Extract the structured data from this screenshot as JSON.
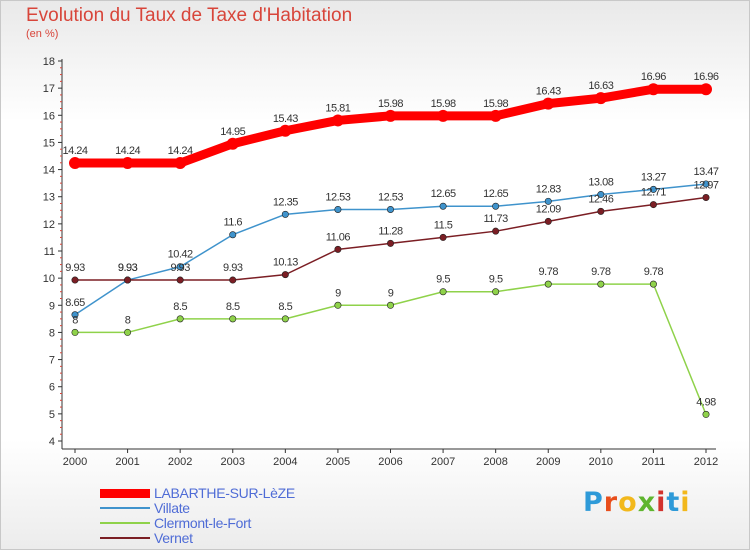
{
  "title": "Evolution du Taux de Taxe d'Habitation",
  "subtitle": "(en %)",
  "logo": {
    "text": "Proxiti",
    "letter_colors": [
      "#2e9ad8",
      "#e84e1b",
      "#f2b81c",
      "#5fb52e",
      "#d2322d",
      "#2e9ad8",
      "#f2b81c"
    ]
  },
  "chart_data": {
    "type": "line",
    "x": [
      2000,
      2001,
      2002,
      2003,
      2004,
      2005,
      2006,
      2007,
      2008,
      2009,
      2010,
      2011,
      2012
    ],
    "ylim": [
      4,
      18
    ],
    "yticks": [
      4,
      5,
      6,
      7,
      8,
      9,
      10,
      11,
      12,
      13,
      14,
      15,
      16,
      17,
      18
    ],
    "grid": false,
    "legend_position": "bottom-left",
    "series": [
      {
        "name": "LABARTHE-SUR-LèZE",
        "color": "#ff0000",
        "values": [
          14.24,
          14.24,
          14.24,
          14.95,
          15.43,
          15.81,
          15.98,
          15.98,
          15.98,
          16.43,
          16.63,
          16.96,
          16.96
        ],
        "labels": [
          "14.24",
          "14.24",
          "14.24",
          "14.95",
          "15.43",
          "15.81",
          "15.98",
          "15.98",
          "15.98",
          "16.43",
          "16.63",
          "16.96",
          "16.96"
        ]
      },
      {
        "name": "Villate",
        "color": "#3f93cc",
        "values": [
          8.65,
          9.93,
          10.42,
          11.6,
          12.35,
          12.53,
          12.53,
          12.65,
          12.65,
          12.83,
          13.08,
          13.27,
          13.47
        ],
        "labels": [
          "8.65",
          "9.93",
          "10.42",
          "11.6",
          "12.35",
          "12.53",
          "12.53",
          "12.65",
          "12.65",
          "12.83",
          "13.08",
          "13.27",
          "13.47"
        ]
      },
      {
        "name": "Clermont-le-Fort",
        "color": "#8fd24a",
        "values": [
          8,
          8,
          8.5,
          8.5,
          8.5,
          9,
          9,
          9.5,
          9.5,
          9.78,
          9.78,
          9.78,
          4.98
        ],
        "labels": [
          "8",
          "8",
          "8.5",
          "8.5",
          "8.5",
          "9",
          "9",
          "9.5",
          "9.5",
          "9.78",
          "9.78",
          "9.78",
          "4.98"
        ]
      },
      {
        "name": "Vernet",
        "color": "#7b1e24",
        "values": [
          9.93,
          9.93,
          9.93,
          9.93,
          10.13,
          11.06,
          11.28,
          11.5,
          11.73,
          12.09,
          12.46,
          12.71,
          12.97
        ],
        "labels": [
          "9.93",
          "9.93",
          "9.93",
          "9.93",
          "10.13",
          "11.06",
          "11.28",
          "11.5",
          "11.73",
          "12.09",
          "12.46",
          "12.71",
          "12.97"
        ]
      }
    ]
  }
}
